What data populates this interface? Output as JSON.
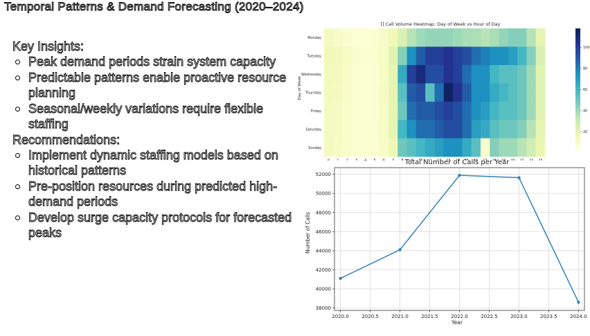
{
  "slide": {
    "title": "Temporal Patterns & Demand Forecasting (2020–2024)"
  },
  "insights": {
    "key_heading": "Key Insights:",
    "key_points": [
      "Peak demand periods strain system capacity",
      "Predictable patterns enable proactive resource planning",
      "Seasonal/weekly variations require flexible staffing"
    ],
    "rec_heading": "Recommendations:",
    "rec_points": [
      "Implement dynamic staffing models based on historical patterns",
      "Pre-position resources during predicted high-demand periods",
      "Develop surge capacity protocols for forecasted peaks"
    ]
  },
  "chart_data": [
    {
      "type": "heatmap",
      "title": "[] Call Volume Heatmap: Day of Week vs Hour of Day",
      "xlabel": "",
      "ylabel": "Day of Week",
      "rows": [
        "Monday",
        "Tuesday",
        "Wednesday",
        "Thursday",
        "Friday",
        "Saturday",
        "Sunday"
      ],
      "columns": [
        "0",
        "1",
        "2",
        "3",
        "4",
        "5",
        "6",
        "7",
        "8",
        "9",
        "10",
        "11",
        "12",
        "13",
        "14",
        "15",
        "16",
        "17",
        "18",
        "19",
        "20",
        "21",
        "22",
        "23"
      ],
      "values": [
        [
          12,
          10,
          7,
          5,
          5,
          6,
          9,
          15,
          25,
          35,
          40,
          42,
          42,
          42,
          40,
          38,
          37,
          35,
          38,
          42,
          45,
          45,
          35,
          20
        ],
        [
          15,
          14,
          10,
          7,
          6,
          7,
          10,
          22,
          45,
          75,
          90,
          100,
          100,
          105,
          100,
          95,
          85,
          80,
          75,
          75,
          70,
          60,
          45,
          25
        ],
        [
          14,
          13,
          9,
          6,
          5,
          6,
          10,
          20,
          65,
          100,
          110,
          95,
          95,
          105,
          100,
          85,
          75,
          75,
          60,
          55,
          55,
          50,
          40,
          22
        ],
        [
          13,
          12,
          9,
          6,
          5,
          6,
          11,
          20,
          55,
          90,
          95,
          55,
          85,
          115,
          105,
          90,
          75,
          75,
          65,
          60,
          55,
          50,
          40,
          22
        ],
        [
          12,
          11,
          8,
          6,
          5,
          6,
          10,
          20,
          50,
          85,
          90,
          90,
          95,
          100,
          95,
          85,
          75,
          70,
          60,
          55,
          55,
          50,
          40,
          22
        ],
        [
          12,
          11,
          8,
          6,
          6,
          7,
          10,
          20,
          60,
          75,
          85,
          85,
          90,
          95,
          95,
          85,
          70,
          65,
          55,
          50,
          50,
          45,
          35,
          20
        ],
        [
          12,
          10,
          8,
          6,
          6,
          6,
          9,
          16,
          50,
          55,
          60,
          65,
          70,
          75,
          75,
          65,
          55,
          8,
          45,
          40,
          40,
          35,
          28,
          18
        ]
      ],
      "colorbar_ticks": [
        20,
        40,
        60,
        80,
        100
      ],
      "vmin": 3,
      "vmax": 118,
      "colormap": "YlGnBu"
    },
    {
      "type": "line",
      "title": "Total Number of Calls per Year",
      "xlabel": "Year",
      "ylabel": "Number of Calls",
      "x": [
        2020,
        2021,
        2022,
        2023,
        2024
      ],
      "y": [
        41100,
        44100,
        51900,
        51650,
        38600
      ],
      "xticks": [
        "2020.0",
        "2020.5",
        "2021.0",
        "2021.5",
        "2022.0",
        "2022.5",
        "2023.0",
        "2023.5",
        "2024.0"
      ],
      "yticks": [
        "38000",
        "40000",
        "42000",
        "44000",
        "46000",
        "48000",
        "50000",
        "52000"
      ],
      "xlim": [
        2019.9,
        2024.1
      ],
      "ylim": [
        37750,
        52700
      ],
      "grid": true,
      "line_color": "#3282b8"
    }
  ]
}
